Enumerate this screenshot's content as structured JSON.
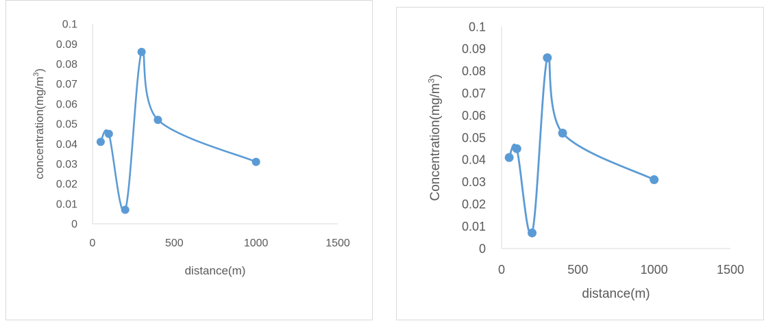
{
  "chart_data": [
    {
      "type": "scatter",
      "smooth_lines": true,
      "title": "",
      "xlabel": "distance(m)",
      "ylabel": "concentration(mg/m",
      "ylabel_superscript": "3",
      "ylabel_suffix": ")",
      "xlim": [
        0,
        1500
      ],
      "ylim": [
        0,
        0.1
      ],
      "x_ticks": [
        "0",
        "500",
        "1000",
        "1500"
      ],
      "y_ticks": [
        "0",
        "0.01",
        "0.02",
        "0.03",
        "0.04",
        "0.05",
        "0.06",
        "0.07",
        "0.08",
        "0.09",
        "0.1"
      ],
      "grid": false,
      "legend": "none",
      "color": "#5b9bd5",
      "series": [
        {
          "x": [
            50,
            100,
            200,
            300,
            400,
            1000
          ],
          "y": [
            0.041,
            0.045,
            0.007,
            0.086,
            0.052,
            0.031
          ]
        }
      ]
    },
    {
      "type": "scatter",
      "smooth_lines": true,
      "title": "",
      "xlabel": "distance(m)",
      "ylabel": "Concentration(mg/m",
      "ylabel_superscript": "3",
      "ylabel_suffix": ")",
      "xlim": [
        0,
        1500
      ],
      "ylim": [
        0,
        0.1
      ],
      "x_ticks": [
        "0",
        "500",
        "1000",
        "1500"
      ],
      "y_ticks": [
        "0",
        "0.01",
        "0.02",
        "0.03",
        "0.04",
        "0.05",
        "0.06",
        "0.07",
        "0.08",
        "0.09",
        "0.1"
      ],
      "grid": false,
      "legend": "none",
      "color": "#5b9bd5",
      "series": [
        {
          "x": [
            50,
            100,
            200,
            300,
            400,
            1000
          ],
          "y": [
            0.041,
            0.045,
            0.007,
            0.086,
            0.052,
            0.031
          ]
        }
      ]
    }
  ]
}
